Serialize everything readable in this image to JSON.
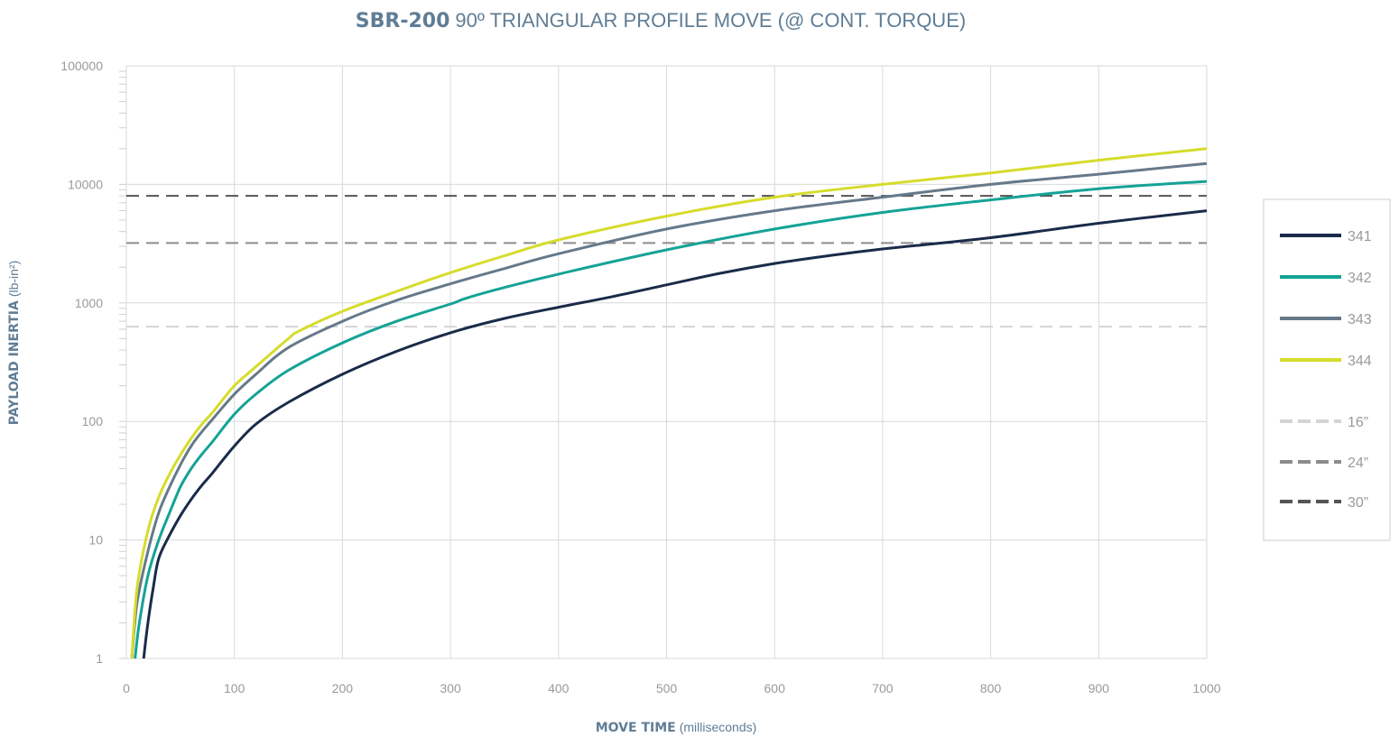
{
  "chart_data": {
    "type": "line",
    "title_bold": "SBR-200",
    "title_rest": "90º TRIANGULAR PROFILE MOVE (@ CONT. TORQUE)",
    "xlabel_bold": "MOVE TIME",
    "xlabel_rest": "(milliseconds)",
    "ylabel_bold": "PAYLOAD INERTIA",
    "ylabel_rest": "(lb-in²)",
    "xlim": [
      0,
      1000
    ],
    "ylim": [
      1,
      100000
    ],
    "y_scale": "log",
    "grid": true,
    "legend_position": "right",
    "x_ticks": [
      "0",
      "100",
      "200",
      "300",
      "400",
      "500",
      "600",
      "700",
      "800",
      "900",
      "1000"
    ],
    "y_ticks": [
      "1",
      "10",
      "100",
      "1000",
      "10000",
      "100000"
    ],
    "series": [
      {
        "name": "341",
        "color": "#1a2b4a",
        "style": "solid",
        "x": [
          16,
          20,
          25,
          30,
          40,
          50,
          60,
          70,
          80,
          100,
          120,
          150,
          200,
          250,
          300,
          350,
          400,
          450,
          500,
          550,
          600,
          650,
          700,
          800,
          900,
          1000
        ],
        "y": [
          1,
          2,
          4,
          7,
          11,
          16,
          22,
          29,
          37,
          62,
          95,
          145,
          250,
          390,
          560,
          740,
          920,
          1130,
          1420,
          1780,
          2150,
          2500,
          2850,
          3550,
          4700,
          6000
        ]
      },
      {
        "name": "342",
        "color": "#14a396",
        "style": "solid",
        "x": [
          8,
          12,
          20,
          30,
          40,
          50,
          60,
          70,
          80,
          100,
          120,
          150,
          200,
          250,
          300,
          315,
          350,
          400,
          500,
          600,
          700,
          800,
          900,
          1000
        ],
        "y": [
          1,
          2,
          5,
          10,
          17,
          28,
          40,
          53,
          68,
          115,
          170,
          270,
          460,
          700,
          980,
          1100,
          1350,
          1750,
          2800,
          4200,
          5800,
          7400,
          9200,
          10600
        ]
      },
      {
        "name": "343",
        "color": "#66798a",
        "style": "solid",
        "x": [
          5,
          10,
          20,
          30,
          40,
          50,
          60,
          70,
          80,
          100,
          120,
          150,
          200,
          250,
          300,
          350,
          400,
          500,
          600,
          700,
          800,
          900,
          1000
        ],
        "y": [
          1,
          3,
          8,
          17,
          28,
          43,
          62,
          82,
          105,
          170,
          250,
          420,
          700,
          1050,
          1450,
          1950,
          2600,
          4200,
          6000,
          7800,
          10000,
          12200,
          15000
        ]
      },
      {
        "name": "344",
        "color": "#d6dc2c",
        "style": "solid",
        "x": [
          5,
          10,
          20,
          30,
          40,
          50,
          60,
          70,
          80,
          100,
          120,
          150,
          160,
          200,
          250,
          300,
          350,
          400,
          500,
          600,
          700,
          800,
          900,
          1000
        ],
        "y": [
          1,
          4,
          12,
          23,
          36,
          52,
          72,
          95,
          120,
          200,
          290,
          500,
          580,
          850,
          1250,
          1800,
          2500,
          3400,
          5400,
          7800,
          10000,
          12500,
          16000,
          20000
        ]
      },
      {
        "name": "16”",
        "color": "#d4d4d4",
        "style": "dashed",
        "x": [
          0,
          1000
        ],
        "y": [
          630,
          630
        ]
      },
      {
        "name": "24”",
        "color": "#8c8c8c",
        "style": "dashed",
        "x": [
          0,
          1000
        ],
        "y": [
          3200,
          3200
        ]
      },
      {
        "name": "30”",
        "color": "#555555",
        "style": "dashed",
        "x": [
          0,
          1000
        ],
        "y": [
          8000,
          8000
        ]
      }
    ]
  }
}
